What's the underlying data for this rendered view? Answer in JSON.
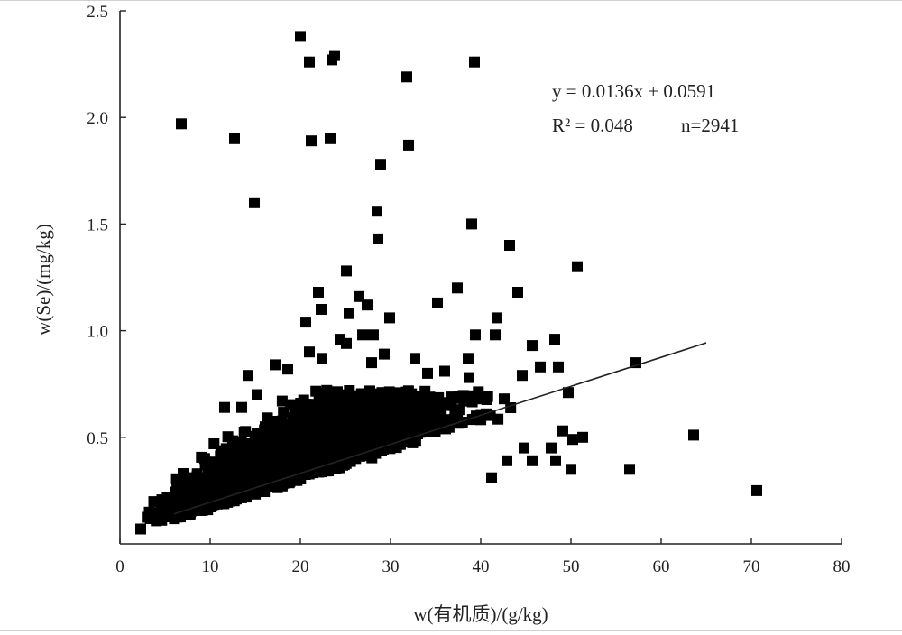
{
  "chart_data": {
    "type": "scatter",
    "xlabel": "w(有机质)/(g/kg)",
    "ylabel": "w(Se)/(mg/kg)",
    "xlim": [
      0,
      80
    ],
    "ylim": [
      0,
      2.5
    ],
    "x_ticks": [
      "0",
      "10",
      "20",
      "30",
      "40",
      "50",
      "60",
      "70",
      "80"
    ],
    "y_ticks": [
      "0.5",
      "1.0",
      "1.5",
      "2.0",
      "2.5"
    ],
    "annotations": {
      "equation": "y = 0.0136x + 0.0591",
      "r2": "R² = 0.048",
      "n": "n=2941"
    },
    "trendline": {
      "slope": 0.0136,
      "intercept": 0.0591,
      "x_range": [
        6,
        65
      ]
    },
    "outliers": [
      [
        20,
        2.38
      ],
      [
        21,
        2.26
      ],
      [
        23.5,
        2.27
      ],
      [
        23.8,
        2.29
      ],
      [
        31.8,
        2.19
      ],
      [
        39.3,
        2.26
      ],
      [
        6.8,
        1.97
      ],
      [
        12.7,
        1.9
      ],
      [
        21.2,
        1.89
      ],
      [
        23.3,
        1.9
      ],
      [
        32,
        1.87
      ],
      [
        28.9,
        1.78
      ],
      [
        14.9,
        1.6
      ],
      [
        28.5,
        1.56
      ],
      [
        28.6,
        1.43
      ],
      [
        39,
        1.5
      ],
      [
        43.2,
        1.4
      ],
      [
        50.7,
        1.3
      ],
      [
        25.1,
        1.28
      ],
      [
        37.4,
        1.2
      ],
      [
        44.1,
        1.18
      ],
      [
        22,
        1.18
      ],
      [
        26.5,
        1.16
      ],
      [
        27.4,
        1.12
      ],
      [
        35.2,
        1.13
      ],
      [
        22.3,
        1.1
      ],
      [
        25.4,
        1.08
      ],
      [
        29.9,
        1.06
      ],
      [
        41.8,
        1.06
      ],
      [
        20.6,
        1.04
      ],
      [
        41.6,
        0.98
      ],
      [
        39.4,
        0.98
      ],
      [
        26.9,
        0.98
      ],
      [
        28.1,
        0.98
      ],
      [
        24.4,
        0.96
      ],
      [
        25.1,
        0.94
      ],
      [
        45.7,
        0.93
      ],
      [
        48.2,
        0.96
      ],
      [
        29.3,
        0.89
      ],
      [
        21,
        0.9
      ],
      [
        22.4,
        0.87
      ],
      [
        32.7,
        0.87
      ],
      [
        38.6,
        0.87
      ],
      [
        27.9,
        0.85
      ],
      [
        46.6,
        0.83
      ],
      [
        48.6,
        0.83
      ],
      [
        57.2,
        0.85
      ],
      [
        17.2,
        0.84
      ],
      [
        18.6,
        0.82
      ],
      [
        14.2,
        0.79
      ],
      [
        36,
        0.81
      ],
      [
        44.6,
        0.79
      ],
      [
        38.7,
        0.78
      ],
      [
        34.1,
        0.8
      ],
      [
        49.7,
        0.71
      ],
      [
        42.6,
        0.68
      ],
      [
        39.5,
        0.6
      ],
      [
        40.6,
        0.61
      ],
      [
        63.6,
        0.51
      ],
      [
        51.3,
        0.5
      ],
      [
        50.2,
        0.49
      ],
      [
        49.1,
        0.53
      ],
      [
        47.8,
        0.45
      ],
      [
        45.7,
        0.39
      ],
      [
        48.3,
        0.39
      ],
      [
        50,
        0.35
      ],
      [
        56.5,
        0.35
      ],
      [
        70.6,
        0.25
      ],
      [
        42.9,
        0.39
      ],
      [
        44.8,
        0.45
      ],
      [
        41.2,
        0.31
      ],
      [
        11.6,
        0.64
      ],
      [
        13.5,
        0.64
      ],
      [
        15.2,
        0.7
      ],
      [
        7,
        0.33
      ],
      [
        6.1,
        0.24
      ],
      [
        5.6,
        0.21
      ],
      [
        2.3,
        0.07
      ]
    ],
    "cluster": {
      "description_count": 2941,
      "x_center_range": [
        3,
        44
      ],
      "y_band": [
        0.08,
        0.7
      ]
    }
  }
}
